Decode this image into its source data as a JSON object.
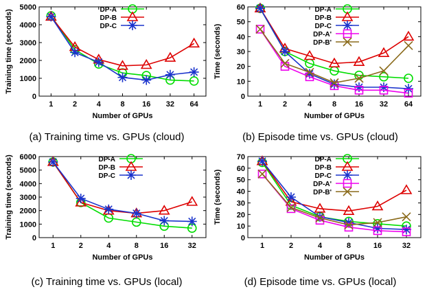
{
  "colors": {
    "DP-A": "#00dd00",
    "DP-B": "#dd0000",
    "DP-C": "#1a33cc",
    "DP-A'": "#ee00ee",
    "DP-B'": "#8a6a1a"
  },
  "markers": {
    "DP-A": "circle",
    "DP-B": "triangle",
    "DP-C": "asterisk",
    "DP-A'": "square",
    "DP-B'": "x"
  },
  "chart_data": [
    {
      "type": "line",
      "caption": "(a) Training time vs. GPUs (cloud)",
      "xlabel": "Number of GPUs",
      "ylabel": "Training time (seconds)",
      "categories": [
        "1",
        "2",
        "4",
        "8",
        "16",
        "32",
        "64"
      ],
      "ylim": [
        0,
        5000
      ],
      "yticks": [
        0,
        1000,
        2000,
        3000,
        4000,
        5000
      ],
      "grid": false,
      "legend_position": "top-right",
      "series": [
        {
          "name": "DP-A",
          "values": [
            4500,
            2600,
            1800,
            1300,
            1150,
            900,
            850
          ]
        },
        {
          "name": "DP-B",
          "values": [
            4450,
            2750,
            2050,
            1700,
            1750,
            2150,
            2950
          ]
        },
        {
          "name": "DP-C",
          "values": [
            4450,
            2450,
            1900,
            1050,
            900,
            1200,
            1350
          ]
        }
      ]
    },
    {
      "type": "line",
      "caption": "(b) Episode time vs. GPUs (cloud)",
      "xlabel": "Number of GPUs",
      "ylabel": "Time (seconds)",
      "categories": [
        "1",
        "2",
        "4",
        "8",
        "16",
        "32",
        "64"
      ],
      "ylim": [
        0,
        60
      ],
      "yticks": [
        0,
        10,
        20,
        30,
        40,
        50,
        60
      ],
      "grid": false,
      "legend_position": "top-right",
      "series": [
        {
          "name": "DP-A",
          "values": [
            59,
            30,
            22,
            17,
            14,
            13,
            12
          ]
        },
        {
          "name": "DP-B",
          "values": [
            59,
            32,
            27,
            22,
            23,
            29,
            40
          ]
        },
        {
          "name": "DP-C",
          "values": [
            59,
            30,
            15,
            8,
            6,
            6,
            5
          ]
        },
        {
          "name": "DP-A'",
          "values": [
            45,
            20,
            13,
            7,
            4,
            4,
            2
          ]
        },
        {
          "name": "DP-B'",
          "values": [
            45,
            22,
            16,
            9,
            12,
            17,
            34
          ]
        }
      ]
    },
    {
      "type": "line",
      "caption": "(c) Training time vs. GPUs (local)",
      "xlabel": "Number of GPUs",
      "ylabel": "Training time (seconds)",
      "categories": [
        "1",
        "2",
        "4",
        "8",
        "16",
        "32"
      ],
      "ylim": [
        0,
        6000
      ],
      "yticks": [
        0,
        1000,
        2000,
        3000,
        4000,
        5000,
        6000
      ],
      "grid": false,
      "legend_position": "top-right",
      "series": [
        {
          "name": "DP-A",
          "values": [
            5600,
            2600,
            1450,
            1150,
            850,
            700
          ]
        },
        {
          "name": "DP-B",
          "values": [
            5600,
            2600,
            2000,
            1800,
            2000,
            2650
          ]
        },
        {
          "name": "DP-C",
          "values": [
            5600,
            2900,
            2100,
            1800,
            1250,
            1200
          ]
        }
      ]
    },
    {
      "type": "line",
      "caption": "(d) Episode time vs. GPUs (local)",
      "xlabel": "Number of GPUs",
      "ylabel": "Time (seconds)",
      "categories": [
        "1",
        "2",
        "4",
        "8",
        "16",
        "32"
      ],
      "ylim": [
        0,
        70
      ],
      "yticks": [
        0,
        10,
        20,
        30,
        40,
        50,
        60,
        70
      ],
      "grid": false,
      "legend_position": "top-right",
      "series": [
        {
          "name": "DP-A",
          "values": [
            65,
            28,
            18,
            14,
            12,
            10
          ]
        },
        {
          "name": "DP-B",
          "values": [
            66,
            31,
            25,
            23,
            27,
            41
          ]
        },
        {
          "name": "DP-C",
          "values": [
            66,
            35,
            18,
            13,
            8,
            7
          ]
        },
        {
          "name": "DP-A'",
          "values": [
            55,
            25,
            15,
            9,
            6,
            5
          ]
        },
        {
          "name": "DP-B'",
          "values": [
            55,
            26,
            17,
            11,
            13,
            18
          ]
        }
      ]
    }
  ]
}
